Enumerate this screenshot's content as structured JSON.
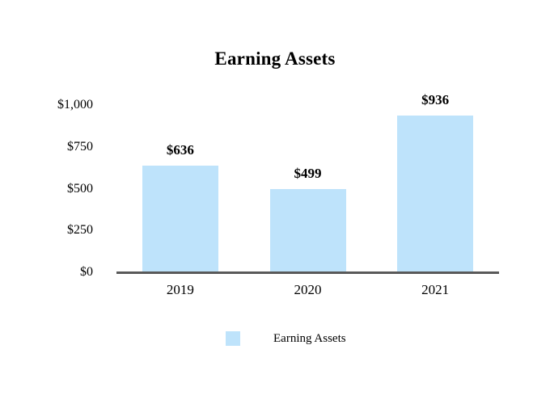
{
  "chart_data": {
    "type": "bar",
    "title": "Earning Assets",
    "categories": [
      "2019",
      "2020",
      "2021"
    ],
    "values": [
      636,
      499,
      936
    ],
    "value_labels": [
      "$636",
      "$499",
      "$936"
    ],
    "yticks": [
      {
        "value": 0,
        "label": "$0"
      },
      {
        "value": 250,
        "label": "$250"
      },
      {
        "value": 500,
        "label": "$500"
      },
      {
        "value": 750,
        "label": "$750"
      },
      {
        "value": 1000,
        "label": "$1,000"
      }
    ],
    "ylim": [
      0,
      1000
    ],
    "xlabel": "",
    "ylabel": "",
    "grid": false,
    "legend": "Earning Assets",
    "legend_position": "bottom",
    "colors": {
      "bar_fill": "#BEE3FB",
      "axis_line": "#595959",
      "text": "#000000"
    }
  }
}
